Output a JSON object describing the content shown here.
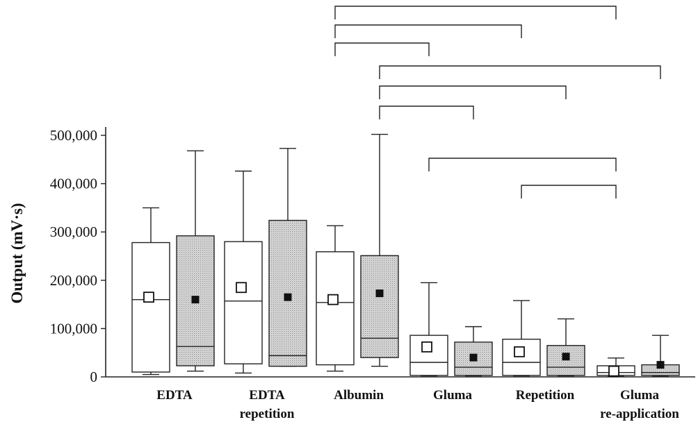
{
  "chart_data": {
    "type": "box",
    "ylabel": "Output (mV·s)",
    "ylim": [
      0,
      500000
    ],
    "y_ticks": [
      0,
      100000,
      200000,
      300000,
      400000,
      500000
    ],
    "y_tick_labels": [
      "0",
      "100,000",
      "200,000",
      "300,000",
      "400,000",
      "500,000"
    ],
    "categories": [
      {
        "lines": [
          "EDTA"
        ]
      },
      {
        "lines": [
          "EDTA",
          "repetition"
        ]
      },
      {
        "lines": [
          "Albumin"
        ]
      },
      {
        "lines": [
          "Gluma"
        ]
      },
      {
        "lines": [
          "Repetition"
        ]
      },
      {
        "lines": [
          "Gluma",
          "re-application"
        ]
      }
    ],
    "groups": [
      {
        "left": {
          "whisker_low": 5000,
          "q1": 10000,
          "median": 160000,
          "q3": 278000,
          "whisker_high": 350000,
          "mean": 165000
        },
        "right": {
          "whisker_low": 12000,
          "q1": 23000,
          "median": 63000,
          "q3": 292000,
          "whisker_high": 468000,
          "mean": 160000
        }
      },
      {
        "left": {
          "whisker_low": 8000,
          "q1": 27000,
          "median": 157000,
          "q3": 280000,
          "whisker_high": 426000,
          "mean": 185000
        },
        "right": {
          "whisker_low": 22000,
          "q1": 22000,
          "median": 44000,
          "q3": 324000,
          "whisker_high": 473000,
          "mean": 165000
        }
      },
      {
        "left": {
          "whisker_low": 12000,
          "q1": 25000,
          "median": 154000,
          "q3": 259000,
          "whisker_high": 313000,
          "mean": 160000
        },
        "right": {
          "whisker_low": 22000,
          "q1": 40000,
          "median": 80000,
          "q3": 251000,
          "whisker_high": 502000,
          "mean": 173000
        }
      },
      {
        "left": {
          "whisker_low": 2000,
          "q1": 3000,
          "median": 30000,
          "q3": 86000,
          "whisker_high": 195000,
          "mean": 62000
        },
        "right": {
          "whisker_low": 2000,
          "q1": 3000,
          "median": 20000,
          "q3": 72000,
          "whisker_high": 104000,
          "mean": 40000
        }
      },
      {
        "left": {
          "whisker_low": 2000,
          "q1": 3000,
          "median": 30000,
          "q3": 78000,
          "whisker_high": 158000,
          "mean": 52000
        },
        "right": {
          "whisker_low": 2000,
          "q1": 3000,
          "median": 20000,
          "q3": 65000,
          "whisker_high": 120000,
          "mean": 42000
        }
      },
      {
        "left": {
          "whisker_low": 1000,
          "q1": 3000,
          "median": 9000,
          "q3": 23000,
          "whisker_high": 39000,
          "mean": 12000
        },
        "right": {
          "whisker_low": 1000,
          "q1": 3000,
          "median": 9000,
          "q3": 25000,
          "whisker_high": 86000,
          "mean": 25000
        }
      }
    ],
    "significance_brackets": [
      {
        "from_group": 2,
        "from_side": "left",
        "to_group": 5,
        "to_side": "left",
        "level": 1
      },
      {
        "from_group": 2,
        "from_side": "left",
        "to_group": 4,
        "to_side": "left",
        "level": 2
      },
      {
        "from_group": 2,
        "from_side": "left",
        "to_group": 3,
        "to_side": "left",
        "level": 3
      },
      {
        "from_group": 2,
        "from_side": "right",
        "to_group": 5,
        "to_side": "right",
        "level": 4
      },
      {
        "from_group": 2,
        "from_side": "right",
        "to_group": 4,
        "to_side": "right",
        "level": 5
      },
      {
        "from_group": 2,
        "from_side": "right",
        "to_group": 3,
        "to_side": "right",
        "level": 6
      },
      {
        "from_group": 3,
        "from_side": "left",
        "to_group": 5,
        "to_side": "left",
        "level": 7
      },
      {
        "from_group": 4,
        "from_side": "left",
        "to_group": 5,
        "to_side": "left",
        "level": 8
      }
    ],
    "colors": {
      "left_fill": "#ffffff",
      "right_fill": "#d0d0d0",
      "stroke": "#222222",
      "mean_left": "#ffffff",
      "mean_right": "#111111"
    },
    "grid": false,
    "legend": "none"
  }
}
